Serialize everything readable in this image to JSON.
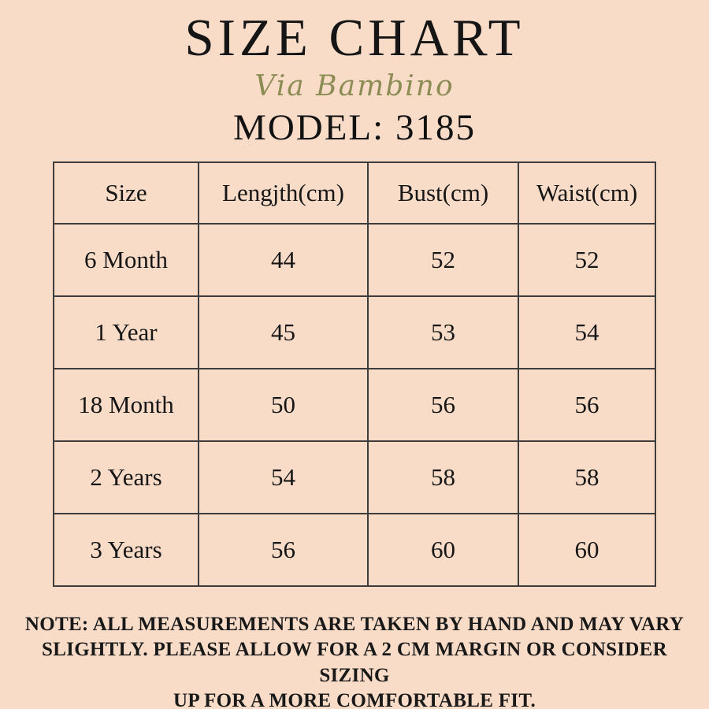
{
  "colors": {
    "background": "#f9dcc8",
    "title_text": "#151515",
    "brand_script": "#8c8c55",
    "table_border": "#3d3d3d",
    "body_text": "#1a1a1a"
  },
  "header": {
    "title": "SIZE CHART",
    "brand": "Via Bambino",
    "model_label": "MODEL: 3185"
  },
  "size_table": {
    "columns": [
      "Size",
      "Lengjth(cm)",
      "Bust(cm)",
      "Waist(cm)"
    ],
    "rows": [
      [
        "6 Month",
        "44",
        "52",
        "52"
      ],
      [
        "1 Year",
        "45",
        "53",
        "54"
      ],
      [
        "18 Month",
        "50",
        "56",
        "56"
      ],
      [
        "2 Years",
        "54",
        "58",
        "58"
      ],
      [
        "3 Years",
        "56",
        "60",
        "60"
      ]
    ]
  },
  "note": {
    "lines": [
      "NOTE: ALL MEASUREMENTS ARE TAKEN BY HAND AND MAY VARY",
      "SLIGHTLY. PLEASE ALLOW FOR A 2 CM MARGIN OR CONSIDER SIZING",
      "UP FOR A MORE COMFORTABLE FIT."
    ]
  },
  "chart_data": {
    "type": "table",
    "title": "SIZE CHART",
    "subtitle": "Via Bambino",
    "model": "MODEL: 3185",
    "columns": [
      "Size",
      "Lengjth(cm)",
      "Bust(cm)",
      "Waist(cm)"
    ],
    "rows": [
      [
        "6 Month",
        44,
        52,
        52
      ],
      [
        "1 Year",
        45,
        53,
        54
      ],
      [
        "18 Month",
        50,
        56,
        56
      ],
      [
        "2 Years",
        54,
        58,
        58
      ],
      [
        "3 Years",
        56,
        60,
        60
      ]
    ],
    "units": "cm",
    "note": "NOTE: ALL MEASUREMENTS ARE TAKEN BY HAND AND MAY VARY SLIGHTLY. PLEASE ALLOW FOR A 2 CM MARGIN OR CONSIDER SIZING UP FOR A MORE COMFORTABLE FIT."
  }
}
